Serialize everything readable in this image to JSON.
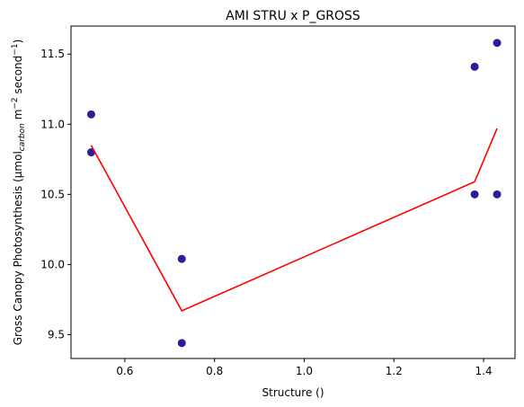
{
  "chart_data": {
    "type": "scatter",
    "title": "AMI STRU x P_GROSS",
    "xlabel": "Structure ()",
    "ylabel_parts": [
      "Gross Canopy Photosynthesis (µmol",
      "carbon",
      " m",
      "−2",
      " second",
      "−1",
      ")"
    ],
    "xlim": [
      0.48,
      1.47
    ],
    "ylim": [
      9.33,
      11.7
    ],
    "x_ticks": [
      0.6,
      0.8,
      1.0,
      1.2,
      1.4
    ],
    "x_tick_labels": [
      "0.6",
      "0.8",
      "1.0",
      "1.2",
      "1.4"
    ],
    "y_ticks": [
      9.5,
      10.0,
      10.5,
      11.0,
      11.5
    ],
    "y_tick_labels": [
      "9.5",
      "10.0",
      "10.5",
      "11.0",
      "11.5"
    ],
    "grid": false,
    "series": [
      {
        "kind": "scatter",
        "color": "#2a1f9a",
        "x": [
          0.525,
          0.525,
          0.727,
          0.727,
          1.38,
          1.38,
          1.43,
          1.43
        ],
        "y": [
          11.07,
          10.8,
          10.04,
          9.44,
          11.41,
          10.5,
          11.58,
          10.5
        ]
      },
      {
        "kind": "line",
        "color": "#ff0000",
        "x": [
          0.525,
          0.727,
          1.38,
          1.43
        ],
        "y": [
          10.85,
          9.67,
          10.59,
          10.97
        ]
      }
    ]
  }
}
